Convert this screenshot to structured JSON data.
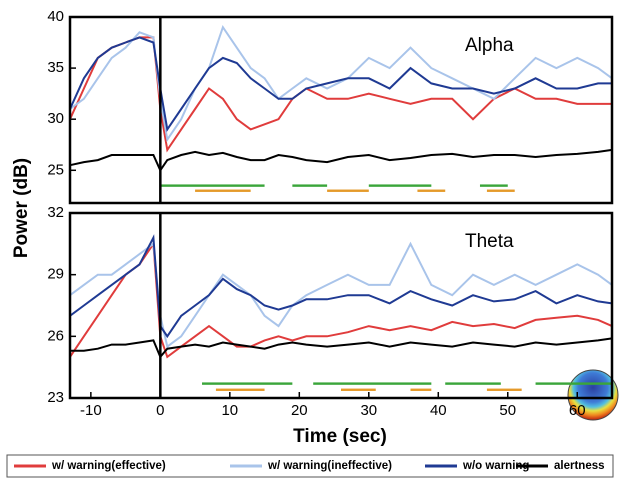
{
  "chart_data": [
    {
      "type": "line",
      "annotation": "Alpha",
      "ylabel": "Power (dB)",
      "x": [
        -13,
        -11,
        -9,
        -7,
        -5,
        -3,
        -1,
        0,
        1,
        3,
        5,
        7,
        9,
        11,
        13,
        15,
        17,
        19,
        21,
        24,
        27,
        30,
        33,
        36,
        39,
        42,
        45,
        48,
        51,
        54,
        57,
        60,
        63,
        65
      ],
      "xlim": [
        -13,
        65
      ],
      "ylim": [
        21.8,
        40
      ],
      "yticks": [
        25,
        30,
        35,
        40
      ],
      "series": [
        {
          "name": "w/ warning(effective)",
          "color": "#e03c3c",
          "values": [
            30,
            33,
            36,
            37,
            37.5,
            38,
            38,
            31,
            27,
            29,
            31,
            33,
            32,
            30,
            29,
            29.5,
            30,
            32,
            33,
            32,
            32,
            32.5,
            32,
            31.5,
            32,
            32,
            30,
            32,
            33,
            32,
            32,
            31.5,
            31.5,
            31.5
          ]
        },
        {
          "name": "w/ warning(ineffective)",
          "color": "#a9c4ea",
          "values": [
            31,
            32,
            34,
            36,
            37,
            38.5,
            38,
            32,
            28,
            30,
            33,
            35,
            39,
            37,
            35,
            34,
            32,
            33,
            34,
            33,
            34,
            36,
            35,
            37,
            35,
            34,
            33,
            32,
            34,
            36,
            35,
            36,
            35,
            34
          ]
        },
        {
          "name": "w/o warning",
          "color": "#1f3a93",
          "values": [
            31,
            34,
            36,
            37,
            37.5,
            38,
            37.5,
            33,
            29,
            31,
            33,
            35,
            36,
            35.5,
            34,
            33,
            32,
            32,
            33,
            33.5,
            34,
            34,
            33,
            35,
            33.5,
            33,
            33,
            32.5,
            33,
            34,
            33,
            33,
            33.5,
            33.5
          ]
        },
        {
          "name": "alertness",
          "color": "#000000",
          "values": [
            25.5,
            25.8,
            26,
            26.5,
            26.5,
            26.5,
            26.5,
            25,
            26,
            26.5,
            26.8,
            26.5,
            26.7,
            26.3,
            26,
            26,
            26.5,
            26.3,
            26,
            25.8,
            26.3,
            26.5,
            26,
            26.2,
            26.5,
            26.6,
            26.3,
            26.5,
            26.5,
            26.3,
            26.5,
            26.6,
            26.8,
            27
          ]
        }
      ],
      "significance": [
        {
          "color": "#3aa53a",
          "y": 23.5,
          "segments": [
            [
              0,
              15
            ],
            [
              19,
              24
            ],
            [
              30,
              39
            ],
            [
              46,
              50
            ]
          ]
        },
        {
          "color": "#e59a2a",
          "y": 23,
          "segments": [
            [
              5,
              13
            ],
            [
              24,
              30
            ],
            [
              37,
              41
            ],
            [
              47,
              51
            ]
          ]
        }
      ]
    },
    {
      "type": "line",
      "annotation": "Theta",
      "xlabel": "Time (sec)",
      "x": [
        -13,
        -11,
        -9,
        -7,
        -5,
        -3,
        -1,
        0,
        1,
        3,
        5,
        7,
        9,
        11,
        13,
        15,
        17,
        19,
        21,
        24,
        27,
        30,
        33,
        36,
        39,
        42,
        45,
        48,
        51,
        54,
        57,
        60,
        63,
        65
      ],
      "xlim": [
        -13,
        65
      ],
      "xticks": [
        -10,
        0,
        10,
        20,
        30,
        40,
        50,
        60
      ],
      "ylim": [
        23,
        32
      ],
      "yticks": [
        23,
        26,
        29,
        32
      ],
      "series": [
        {
          "color": "#e03c3c",
          "values": [
            25,
            26,
            27,
            28,
            29,
            29.5,
            30.5,
            26,
            25,
            25.5,
            26,
            26.5,
            26,
            25.5,
            25.5,
            25.8,
            26,
            25.8,
            26,
            26,
            26.2,
            26.5,
            26.3,
            26.5,
            26.3,
            26.7,
            26.5,
            26.6,
            26.4,
            26.8,
            26.9,
            27,
            26.8,
            26.5
          ]
        },
        {
          "color": "#a9c4ea",
          "values": [
            28,
            28.5,
            29,
            29,
            29.5,
            30,
            30.5,
            27,
            25.5,
            26,
            27,
            28,
            29,
            28.5,
            28,
            27,
            26.5,
            27.5,
            28,
            28.5,
            29,
            28.5,
            28.5,
            30.5,
            28.5,
            28,
            29,
            28.5,
            29,
            28.5,
            29,
            29.5,
            29,
            28.5
          ]
        },
        {
          "color": "#1f3a93",
          "values": [
            27,
            27.5,
            28,
            28.5,
            29,
            29.5,
            30.8,
            26.5,
            26,
            27,
            27.5,
            28,
            28.8,
            28.3,
            28,
            27.5,
            27.3,
            27.5,
            27.8,
            27.8,
            28,
            28,
            27.6,
            28.2,
            27.8,
            27.5,
            28,
            27.7,
            27.8,
            28.2,
            27.6,
            28,
            27.7,
            27.6
          ]
        },
        {
          "color": "#000000",
          "values": [
            25.3,
            25.3,
            25.4,
            25.6,
            25.6,
            25.7,
            25.8,
            25,
            25.4,
            25.5,
            25.6,
            25.5,
            25.7,
            25.6,
            25.5,
            25.4,
            25.6,
            25.7,
            25.6,
            25.5,
            25.6,
            25.7,
            25.5,
            25.7,
            25.6,
            25.5,
            25.7,
            25.6,
            25.5,
            25.7,
            25.6,
            25.7,
            25.8,
            25.9
          ]
        }
      ],
      "significance": [
        {
          "color": "#3aa53a",
          "y": 23.7,
          "segments": [
            [
              6,
              19
            ],
            [
              22,
              39
            ],
            [
              41,
              49
            ],
            [
              54,
              65
            ]
          ]
        },
        {
          "color": "#e59a2a",
          "y": 23.4,
          "segments": [
            [
              8,
              15
            ],
            [
              26,
              31
            ],
            [
              36,
              39
            ],
            [
              47,
              52
            ]
          ]
        }
      ]
    }
  ]
}
